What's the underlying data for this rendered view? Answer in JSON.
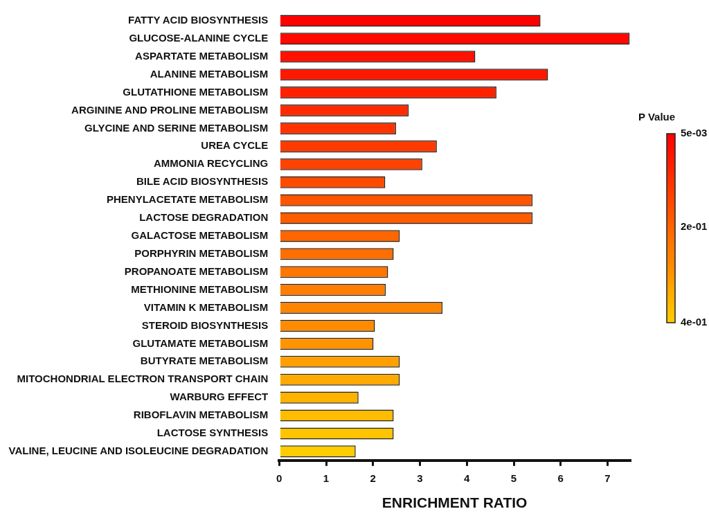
{
  "chart_data": {
    "type": "bar",
    "orientation": "horizontal",
    "xlabel": "ENRICHMENT RATIO",
    "clabel": "P Value",
    "categories": [
      "FATTY ACID BIOSYNTHESIS",
      "GLUCOSE-ALANINE CYCLE",
      "ASPARTATE METABOLISM",
      "ALANINE METABOLISM",
      "GLUTATHIONE METABOLISM",
      "ARGININE AND PROLINE METABOLISM",
      "GLYCINE AND SERINE METABOLISM",
      "UREA CYCLE",
      "AMMONIA RECYCLING",
      "BILE ACID BIOSYNTHESIS",
      "PHENYLACETATE METABOLISM",
      "LACTOSE DEGRADATION",
      "GALACTOSE METABOLISM",
      "PORPHYRIN METABOLISM",
      "PROPANOATE METABOLISM",
      "METHIONINE METABOLISM",
      "VITAMIN K METABOLISM",
      "STEROID BIOSYNTHESIS",
      "GLUTAMATE METABOLISM",
      "BUTYRATE METABOLISM",
      "MITOCHONDRIAL ELECTRON TRANSPORT CHAIN",
      "WARBURG EFFECT",
      "RIBOFLAVIN METABOLISM",
      "LACTOSE SYNTHESIS",
      "VALINE, LEUCINE AND ISOLEUCINE DEGRADATION"
    ],
    "values": [
      5.57,
      7.47,
      4.18,
      5.73,
      4.63,
      2.76,
      2.49,
      3.36,
      3.05,
      2.26,
      5.4,
      5.4,
      2.57,
      2.44,
      2.32,
      2.27,
      3.48,
      2.04,
      2.01,
      2.57,
      2.57,
      1.69,
      2.44,
      2.44,
      1.63
    ],
    "colors": [
      "#ff0000",
      "#ff0800",
      "#ff1000",
      "#ff1800",
      "#ff2000",
      "#ff2a00",
      "#ff3200",
      "#ff3a00",
      "#ff4200",
      "#ff4a00",
      "#ff5400",
      "#ff5c00",
      "#ff6600",
      "#ff6e00",
      "#ff7600",
      "#ff7e00",
      "#ff8400",
      "#ff8c00",
      "#ff9400",
      "#ffa000",
      "#ffaa00",
      "#ffb200",
      "#ffbc00",
      "#ffc400",
      "#ffcc00"
    ],
    "xlim": [
      0,
      7.48
    ],
    "xticks": [
      0,
      1,
      2,
      3,
      4,
      5,
      6,
      7
    ],
    "clim": [
      0.4,
      0.005
    ],
    "cticks": [
      {
        "value": 0.005,
        "label": "5e-03"
      },
      {
        "value": 0.2,
        "label": "2e-01"
      },
      {
        "value": 0.4,
        "label": "4e-01"
      }
    ],
    "grid": false,
    "legend": false
  }
}
